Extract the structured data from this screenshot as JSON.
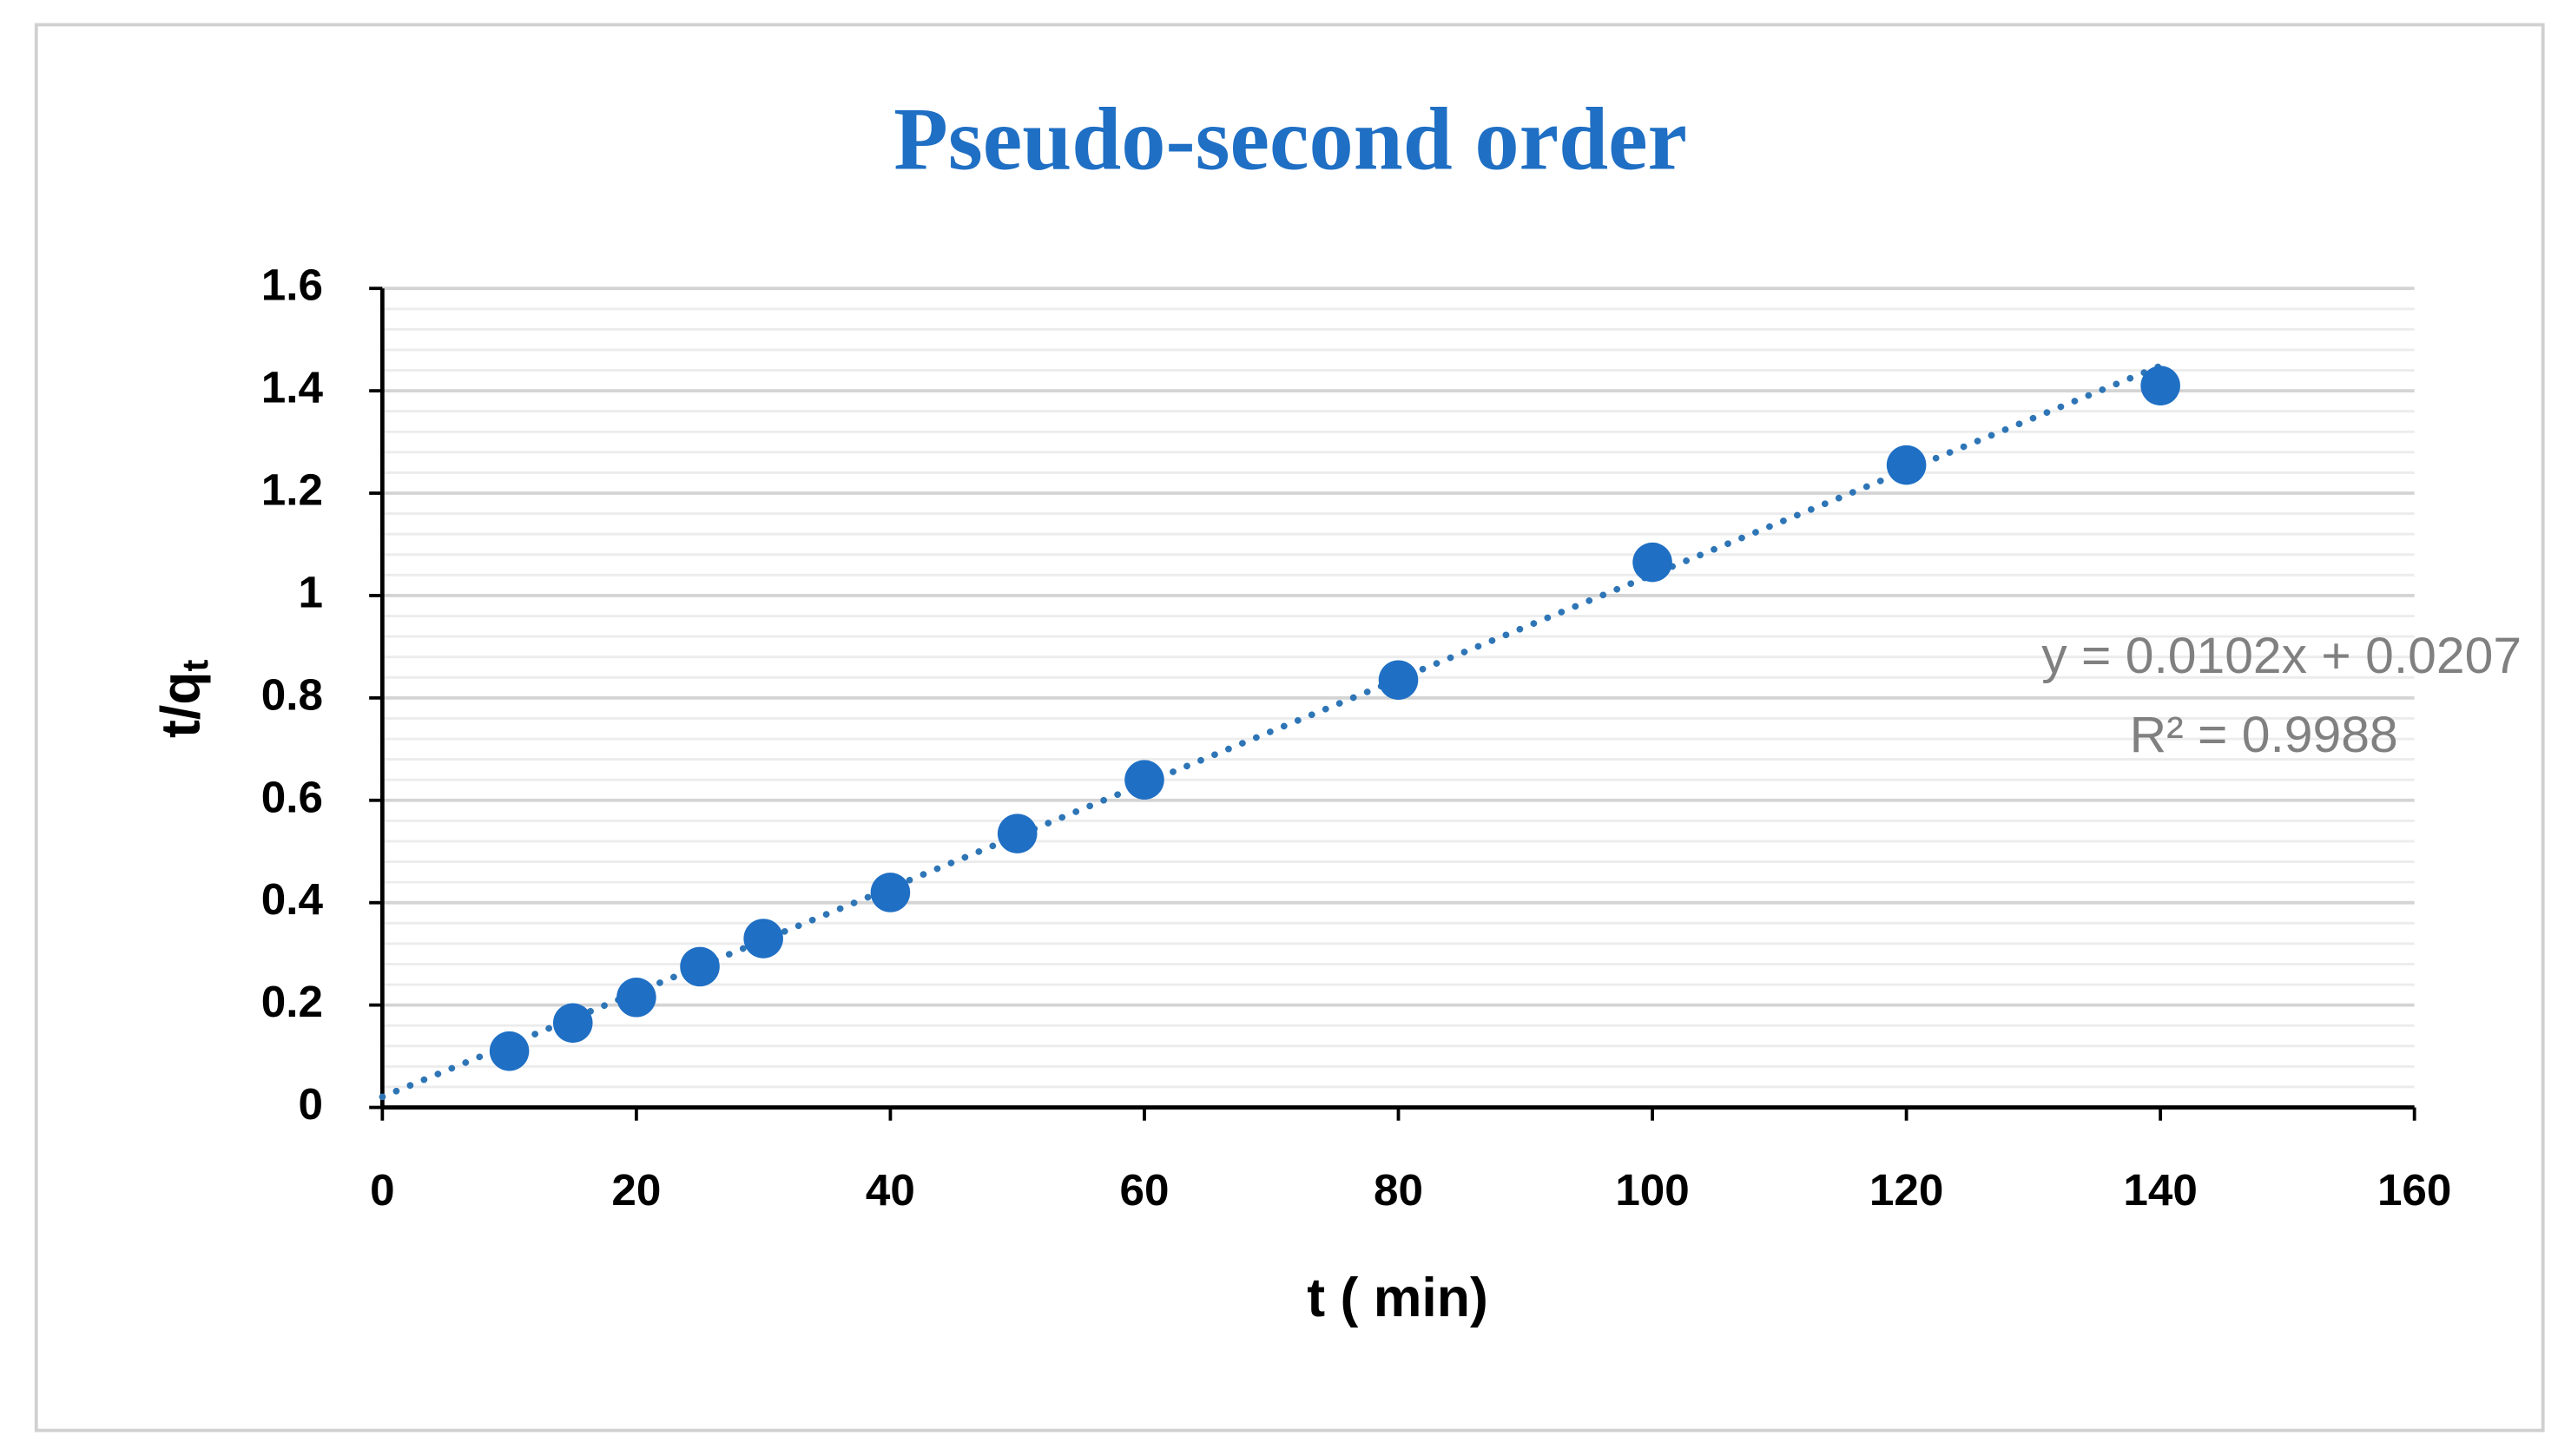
{
  "chart_data": {
    "type": "scatter",
    "title": "Pseudo-second order",
    "x_label": "t ( min)",
    "y_label": {
      "main": "t/q",
      "sub": "t"
    },
    "x": [
      10,
      15,
      20,
      25,
      30,
      40,
      50,
      60,
      80,
      100,
      120,
      140
    ],
    "series": [
      {
        "name": "t/qt",
        "color": "#1f6fc4",
        "values": [
          0.11,
          0.165,
          0.215,
          0.275,
          0.33,
          0.42,
          0.535,
          0.64,
          0.835,
          1.065,
          1.255,
          1.41
        ]
      }
    ],
    "xlim": [
      0,
      160
    ],
    "xticks": [
      0,
      20,
      40,
      60,
      80,
      100,
      120,
      140,
      160
    ],
    "ylim": [
      0,
      1.6
    ],
    "yticks": [
      0,
      0.2,
      0.4,
      0.6,
      0.8,
      1,
      1.2,
      1.4,
      1.6
    ],
    "grid": true,
    "minor_grid": true,
    "trendline": {
      "slope": 0.0102,
      "intercept": 0.0207,
      "color": "#2e75b6",
      "equation": "y = 0.0102x + 0.0207",
      "r2": "R² = 0.9988"
    }
  }
}
